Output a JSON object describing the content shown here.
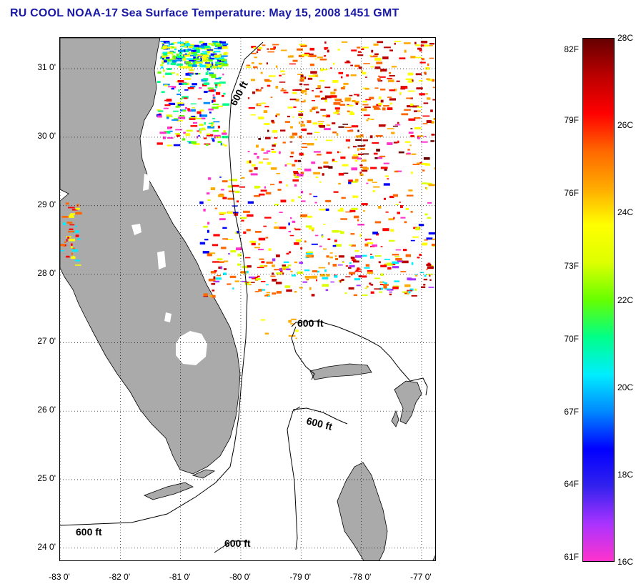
{
  "title": "RU COOL  NOAA-17  Sea Surface Temperature:  May 15, 2008 1451 GMT",
  "map": {
    "lat_ticks": [
      {
        "value": 31,
        "label": "31 0'"
      },
      {
        "value": 30,
        "label": "30 0'"
      },
      {
        "value": 29,
        "label": "29 0'"
      },
      {
        "value": 28,
        "label": "28 0'"
      },
      {
        "value": 27,
        "label": "27 0'"
      },
      {
        "value": 26,
        "label": "26 0'"
      },
      {
        "value": 25,
        "label": "25 0'"
      },
      {
        "value": 24,
        "label": "24 0'"
      }
    ],
    "lon_ticks": [
      {
        "value": -83,
        "label": "-83 0'"
      },
      {
        "value": -82,
        "label": "-82 0'"
      },
      {
        "value": -81,
        "label": "-81 0'"
      },
      {
        "value": -80,
        "label": "-80 0'"
      },
      {
        "value": -79,
        "label": "-79 0'"
      },
      {
        "value": -78,
        "label": "-78 0'"
      },
      {
        "value": -77,
        "label": "-77 0'"
      }
    ],
    "lat_range": [
      23.8,
      31.45
    ],
    "lon_range": [
      -83.0,
      -76.75
    ],
    "land_color": "#aaaaaa",
    "isobath_labels": [
      "600 ft",
      "600 ft",
      "600 ft",
      "600 ft",
      "600 ft"
    ]
  },
  "colorbar": {
    "colors": [
      "#ff33cc",
      "#aa33ff",
      "#3322ee",
      "#0000ff",
      "#0088ff",
      "#00eeff",
      "#00ff88",
      "#66ff00",
      "#ddff00",
      "#ffff00",
      "#ffaa00",
      "#ff6600",
      "#ff0000",
      "#bb0000",
      "#660000"
    ],
    "fahrenheit_labels": [
      {
        "value": 82,
        "label": "82F"
      },
      {
        "value": 79,
        "label": "79F"
      },
      {
        "value": 76,
        "label": "76F"
      },
      {
        "value": 73,
        "label": "73F"
      },
      {
        "value": 70,
        "label": "70F"
      },
      {
        "value": 67,
        "label": "67F"
      },
      {
        "value": 64,
        "label": "64F"
      },
      {
        "value": 61,
        "label": "61F"
      }
    ],
    "celsius_labels": [
      {
        "value": 28,
        "label": "28C"
      },
      {
        "value": 26,
        "label": "26C"
      },
      {
        "value": 24,
        "label": "24C"
      },
      {
        "value": 22,
        "label": "22C"
      },
      {
        "value": 20,
        "label": "20C"
      },
      {
        "value": 18,
        "label": "18C"
      },
      {
        "value": 16,
        "label": "16C"
      }
    ]
  }
}
